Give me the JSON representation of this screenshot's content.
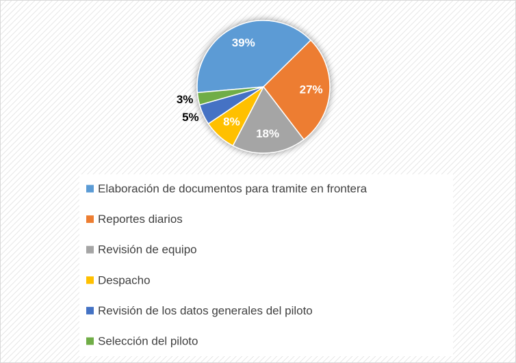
{
  "chart_data": {
    "type": "pie",
    "categories": [
      "Elaboración de documentos para tramite en frontera",
      "Reportes diarios",
      "Revisión de equipo",
      "Despacho",
      "Revisión de los datos generales del piloto",
      "Selección del piloto"
    ],
    "values": [
      39,
      27,
      18,
      8,
      5,
      3
    ],
    "value_labels": [
      "39%",
      "27%",
      "18%",
      "8%",
      "5%",
      "3%"
    ],
    "colors": [
      "#5b9bd5",
      "#ed7d31",
      "#a5a5a5",
      "#ffc000",
      "#4472c4",
      "#70ad47"
    ],
    "legend": "bottom"
  }
}
